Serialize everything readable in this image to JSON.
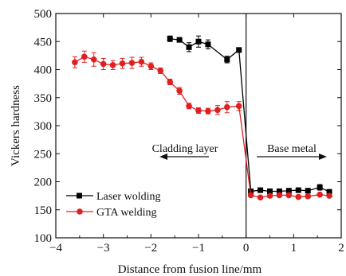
{
  "chart_data": {
    "type": "line",
    "xlabel": "Distance from fusion line/mm",
    "ylabel": "Vickers hardness",
    "xlim": [
      -4,
      2
    ],
    "ylim": [
      100,
      500
    ],
    "xticks": [
      -4,
      -3,
      -2,
      -1,
      0,
      1,
      2
    ],
    "yticks": [
      100,
      150,
      200,
      250,
      300,
      350,
      400,
      450,
      500
    ],
    "xtick_labels": [
      "−4",
      "−3",
      "−2",
      "−1",
      "0",
      "1",
      "2"
    ],
    "ytick_labels": [
      "100",
      "150",
      "200",
      "250",
      "300",
      "350",
      "400",
      "450",
      "500"
    ],
    "fusion_line_x": 0,
    "legend_position": "bottom-left",
    "annotations": {
      "cladding": "Cladding layer",
      "base": "Base metal"
    },
    "series": [
      {
        "name": "Laser wolding",
        "color": "#000000",
        "marker": "square",
        "segments": [
          {
            "x": [
              -1.6,
              -1.4,
              -1.2,
              -1.0,
              -0.8,
              -0.4,
              -0.15
            ],
            "y": [
              455,
              453,
              440,
              450,
              445,
              418,
              435
            ],
            "err": [
              5,
              3,
              8,
              10,
              8,
              6,
              3
            ]
          },
          {
            "x": [
              0.1,
              0.3,
              0.5,
              0.7,
              0.9,
              1.1,
              1.3,
              1.55,
              1.75
            ],
            "y": [
              183,
              185,
              183,
              183,
              184,
              185,
              184,
              190,
              182
            ],
            "err": [
              4,
              3,
              3,
              3,
              3,
              3,
              3,
              5,
              3
            ]
          }
        ],
        "drop_to": [
          0.1,
          180
        ]
      },
      {
        "name": "GTA welding",
        "color": "#e02020",
        "marker": "circle",
        "segments": [
          {
            "x": [
              -3.6,
              -3.4,
              -3.2,
              -3.0,
              -2.8,
              -2.6,
              -2.4,
              -2.2,
              -2.0,
              -1.8,
              -1.6,
              -1.4,
              -1.2,
              -1.0,
              -0.8,
              -0.6,
              -0.4,
              -0.15
            ],
            "y": [
              413,
              423,
              418,
              410,
              408,
              411,
              412,
              414,
              406,
              398,
              378,
              362,
              335,
              327,
              326,
              328,
              333,
              335
            ],
            "err": [
              10,
              10,
              12,
              10,
              8,
              9,
              10,
              8,
              6,
              5,
              5,
              6,
              5,
              5,
              5,
              8,
              10,
              8
            ]
          },
          {
            "x": [
              0.1,
              0.3,
              0.5,
              0.7,
              0.9,
              1.1,
              1.3,
              1.55,
              1.75
            ],
            "y": [
              176,
              172,
              175,
              176,
              176,
              173,
              174,
              177,
              175
            ],
            "err": [
              3,
              3,
              3,
              3,
              3,
              3,
              3,
              3,
              3
            ]
          }
        ],
        "drop_to": [
          0.1,
          176
        ]
      }
    ]
  }
}
